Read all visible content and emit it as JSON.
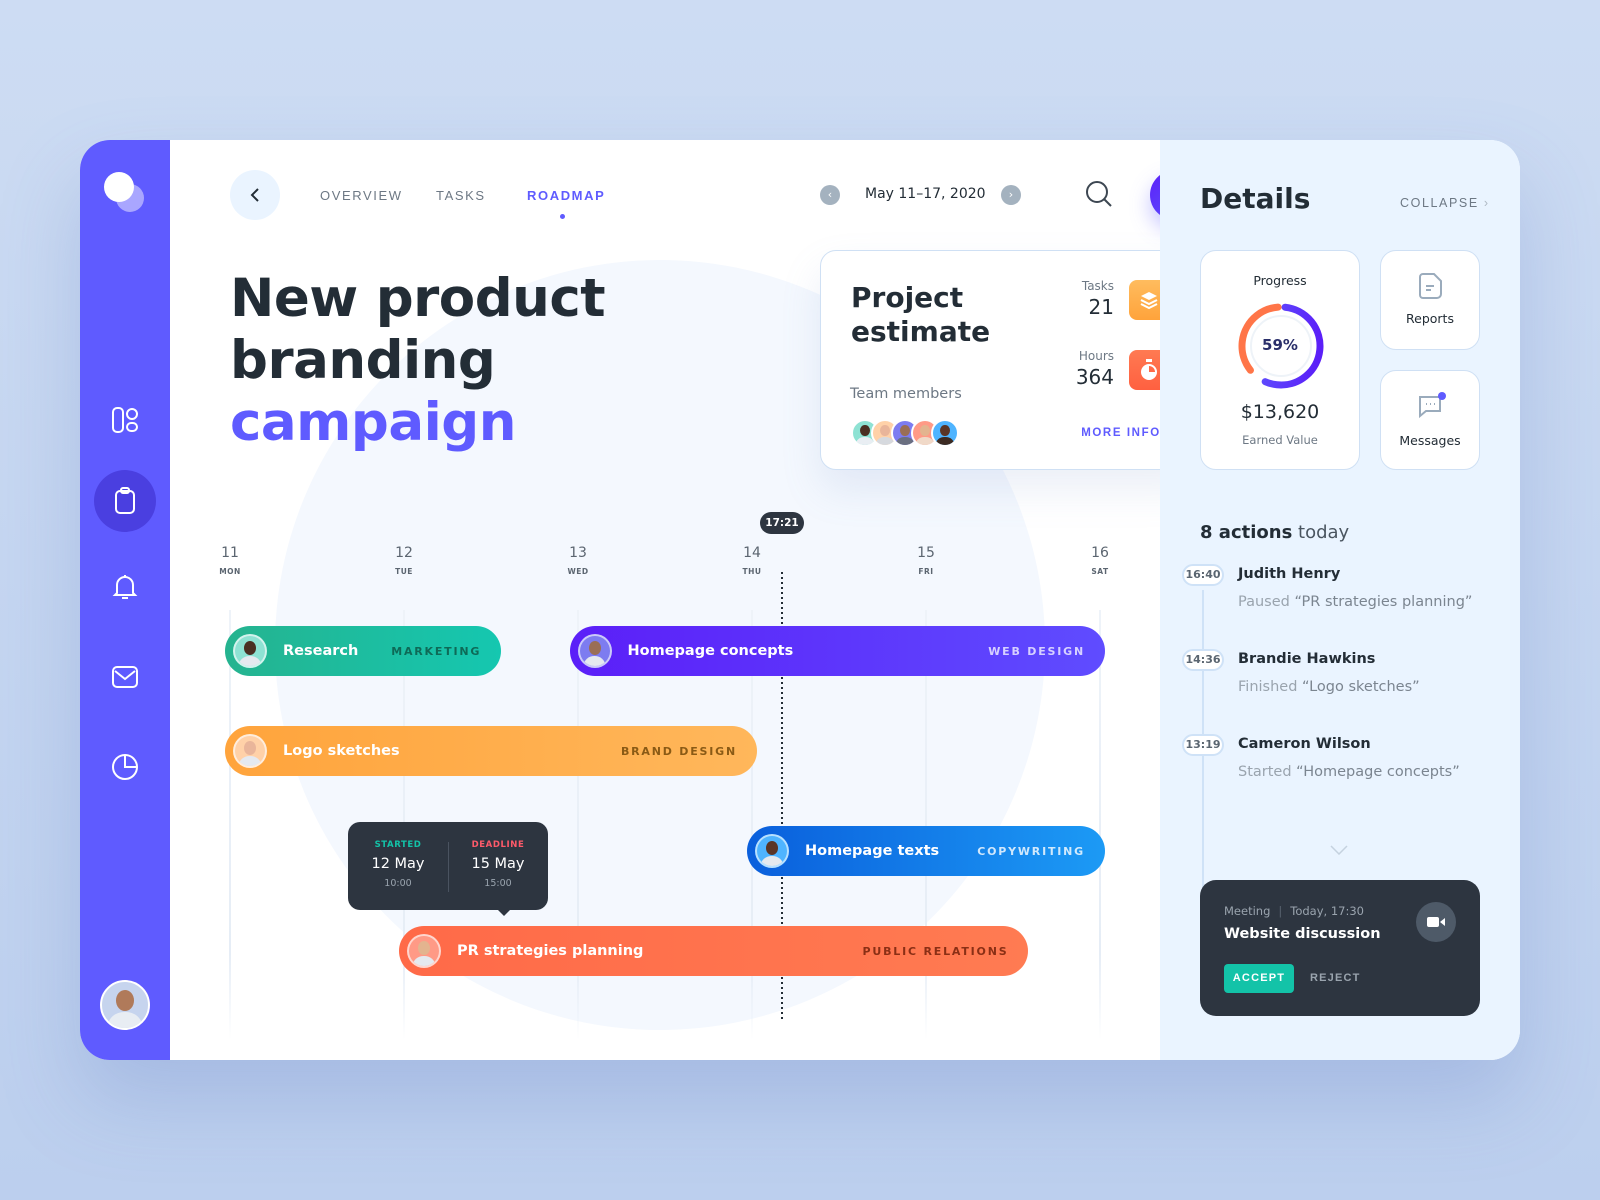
{
  "nav": {
    "tabs": [
      {
        "label": "OVERVIEW"
      },
      {
        "label": "TASKS"
      },
      {
        "label": "ROADMAP",
        "active": true
      }
    ],
    "date_range": "May 11–17, 2020",
    "icons": [
      "chevron-left-icon",
      "search-icon",
      "plus-icon"
    ]
  },
  "sidebar": {
    "items": [
      {
        "icon": "dashboard-icon"
      },
      {
        "icon": "clipboard-icon",
        "active": true
      },
      {
        "icon": "bell-icon"
      },
      {
        "icon": "mail-icon"
      },
      {
        "icon": "pie-chart-icon"
      }
    ]
  },
  "title": {
    "line1": "New product",
    "line2": "branding",
    "line3": "campaign"
  },
  "estimate": {
    "title_line1": "Project",
    "title_line2": "estimate",
    "tasks_label": "Tasks",
    "tasks_value": "21",
    "hours_label": "Hours",
    "hours_value": "364",
    "team_label": "Team members",
    "more_info": "MORE INFO"
  },
  "timeline": {
    "now": "17:21",
    "days": [
      {
        "n": "11",
        "w": "MON"
      },
      {
        "n": "12",
        "w": "TUE"
      },
      {
        "n": "13",
        "w": "WED"
      },
      {
        "n": "14",
        "w": "THU"
      },
      {
        "n": "15",
        "w": "FRI"
      },
      {
        "n": "16",
        "w": "SAT"
      }
    ],
    "tasks": [
      {
        "name": "Research",
        "category": "MARKETING",
        "color": "#1fbf9f"
      },
      {
        "name": "Homepage concepts",
        "category": "WEB DESIGN",
        "color": "#5b2bff"
      },
      {
        "name": "Logo sketches",
        "category": "BRAND DESIGN",
        "color": "#ffaa45"
      },
      {
        "name": "Homepage texts",
        "category": "COPYWRITING",
        "color": "#1b7ef0"
      },
      {
        "name": "PR strategies planning",
        "category": "PUBLIC RELATIONS",
        "color": "#ff6a48"
      }
    ],
    "tooltip": {
      "started_label": "STARTED",
      "started_date": "12 May",
      "started_time": "10:00",
      "deadline_label": "DEADLINE",
      "deadline_date": "15 May",
      "deadline_time": "15:00"
    }
  },
  "details": {
    "title": "Details",
    "collapse": "COLLAPSE",
    "progress": {
      "label": "Progress",
      "percent": 59,
      "percent_text": "59%",
      "value": "$13,620",
      "value_label": "Earned Value"
    },
    "reports": "Reports",
    "messages": "Messages",
    "actions_count": "8 actions",
    "actions_suffix": "today",
    "actions": [
      {
        "time": "16:40",
        "name": "Judith Henry",
        "verb": "Paused",
        "task": "“PR strategies planning”"
      },
      {
        "time": "14:36",
        "name": "Brandie Hawkins",
        "verb": "Finished",
        "task": "“Logo sketches”"
      },
      {
        "time": "13:19",
        "name": "Cameron Wilson",
        "verb": "Started",
        "task": "“Homepage concepts”"
      }
    ],
    "meeting": {
      "type": "Meeting",
      "time": "Today, 17:30",
      "title": "Website discussion",
      "accept": "ACCEPT",
      "reject": "REJECT"
    }
  },
  "colors": {
    "accent": "#5f5bff",
    "dark": "#2d3540",
    "teal": "#13c3a8"
  }
}
